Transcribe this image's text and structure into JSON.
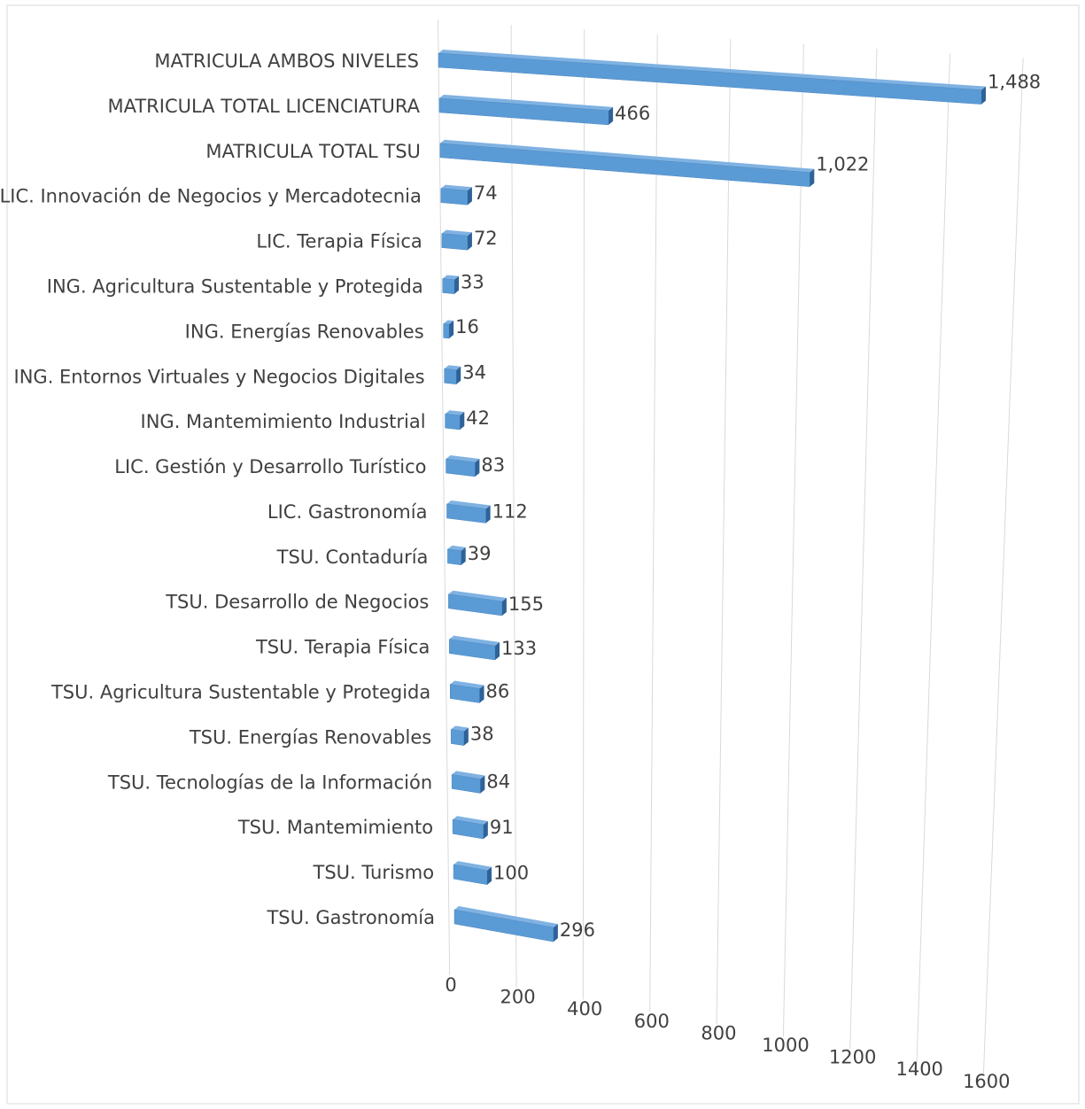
{
  "chart_data": {
    "type": "bar",
    "orientation": "horizontal",
    "perspective": "3d",
    "categories": [
      "MATRICULA AMBOS NIVELES",
      "MATRICULA TOTAL LICENCIATURA",
      "MATRICULA TOTAL TSU",
      "LIC. Innovación de Negocios y Mercadotecnia",
      "LIC. Terapia Física",
      "ING. Agricultura Sustentable y Protegida",
      "ING. Energías Renovables",
      "ING. Entornos Virtuales y Negocios Digitales",
      "ING. Mantemimiento Industrial",
      "LIC. Gestión y Desarrollo Turístico",
      "LIC. Gastronomía",
      "TSU. Contaduría",
      "TSU. Desarrollo de Negocios",
      "TSU. Terapia Física",
      "TSU. Agricultura Sustentable y Protegida",
      "TSU. Energías Renovables",
      "TSU. Tecnologías de la Información",
      "TSU. Mantemimiento",
      "TSU. Turismo",
      "TSU. Gastronomía"
    ],
    "values": [
      1488,
      466,
      1022,
      74,
      72,
      33,
      16,
      34,
      42,
      83,
      112,
      39,
      155,
      133,
      86,
      38,
      84,
      91,
      100,
      296
    ],
    "value_labels": [
      "1,488",
      "466",
      "1,022",
      "74",
      "72",
      "33",
      "16",
      "34",
      "42",
      "83",
      "112",
      "39",
      "155",
      "133",
      "86",
      "38",
      "84",
      "91",
      "100",
      "296"
    ],
    "color": "#5b9bd5",
    "xlim": [
      0,
      1600
    ],
    "xticks": [
      0,
      200,
      400,
      600,
      800,
      1000,
      1200,
      1400,
      1600
    ],
    "grid": true
  }
}
